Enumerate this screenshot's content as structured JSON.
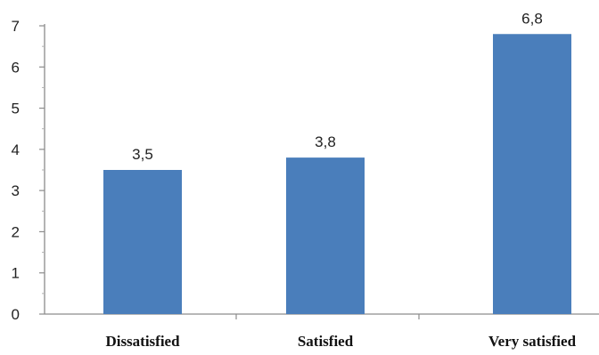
{
  "chart_data": {
    "type": "bar",
    "title": "",
    "xlabel": "",
    "ylabel": "",
    "categories": [
      "Dissatisfied",
      "Satisfied",
      "Very satisfied"
    ],
    "values": [
      3.5,
      3.8,
      6.8
    ],
    "data_labels": [
      "3,5",
      "3,8",
      "6,8"
    ],
    "ylim": [
      0,
      7
    ],
    "yticks": [
      0,
      1,
      2,
      3,
      4,
      5,
      6,
      7
    ],
    "grid": false,
    "legend": "none",
    "colors": {
      "bar": "#4a7ebb",
      "axis": "#8c8c8c"
    }
  }
}
